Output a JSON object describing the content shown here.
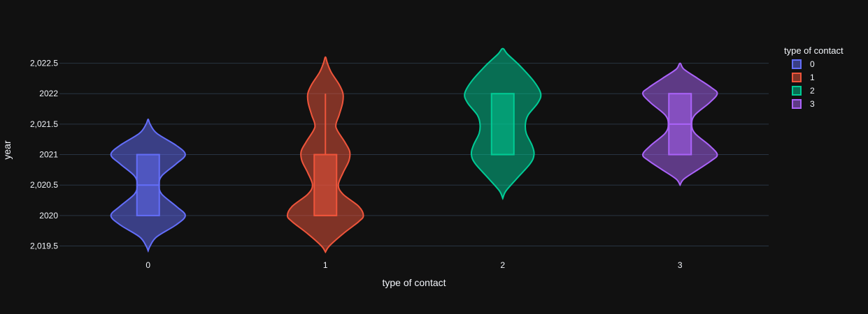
{
  "chart_data": {
    "type": "violin",
    "title": "",
    "xlabel": "type of contact",
    "ylabel": "year",
    "categories": [
      "0",
      "1",
      "2",
      "3"
    ],
    "ylim": [
      2019.3,
      2022.85
    ],
    "yticks": [
      2019.5,
      2020,
      2020.5,
      2021,
      2021.5,
      2022,
      2022.5
    ],
    "ytick_labels": [
      "2,019.5",
      "2020",
      "2,020.5",
      "2021",
      "2,021.5",
      "2022",
      "2,022.5"
    ],
    "grid": true,
    "legend": {
      "title": "type of contact",
      "placement": "top-right"
    },
    "series": [
      {
        "name": "0",
        "color": "#636efa",
        "box": {
          "q1": 2020,
          "median": 2020.5,
          "q3": 2021,
          "whisker_low": 2020,
          "whisker_high": 2021
        },
        "density": [
          [
            2019.42,
            0.0
          ],
          [
            2019.5,
            0.05
          ],
          [
            2019.65,
            0.22
          ],
          [
            2019.85,
            0.72
          ],
          [
            2020.0,
            0.95
          ],
          [
            2020.15,
            0.72
          ],
          [
            2020.35,
            0.35
          ],
          [
            2020.5,
            0.28
          ],
          [
            2020.65,
            0.35
          ],
          [
            2020.85,
            0.72
          ],
          [
            2021.0,
            0.95
          ],
          [
            2021.15,
            0.72
          ],
          [
            2021.35,
            0.22
          ],
          [
            2021.5,
            0.05
          ],
          [
            2021.58,
            0.0
          ]
        ]
      },
      {
        "name": "1",
        "color": "#ef553b",
        "box": {
          "q1": 2020,
          "median": 2020,
          "q3": 2021,
          "whisker_low": 2020,
          "whisker_high": 2022
        },
        "density": [
          [
            2019.4,
            0.0
          ],
          [
            2019.5,
            0.1
          ],
          [
            2019.7,
            0.45
          ],
          [
            2019.9,
            0.85
          ],
          [
            2020.0,
            0.97
          ],
          [
            2020.15,
            0.85
          ],
          [
            2020.35,
            0.45
          ],
          [
            2020.5,
            0.33
          ],
          [
            2020.7,
            0.45
          ],
          [
            2020.9,
            0.6
          ],
          [
            2021.05,
            0.62
          ],
          [
            2021.2,
            0.5
          ],
          [
            2021.4,
            0.3
          ],
          [
            2021.5,
            0.27
          ],
          [
            2021.65,
            0.35
          ],
          [
            2021.85,
            0.44
          ],
          [
            2022.0,
            0.45
          ],
          [
            2022.15,
            0.35
          ],
          [
            2022.35,
            0.15
          ],
          [
            2022.5,
            0.05
          ],
          [
            2022.6,
            0.0
          ]
        ]
      },
      {
        "name": "2",
        "color": "#00cc96",
        "box": {
          "q1": 2021,
          "median": 2021,
          "q3": 2022,
          "whisker_low": 2021,
          "whisker_high": 2022
        },
        "density": [
          [
            2020.28,
            0.0
          ],
          [
            2020.4,
            0.08
          ],
          [
            2020.6,
            0.35
          ],
          [
            2020.85,
            0.7
          ],
          [
            2021.0,
            0.8
          ],
          [
            2021.15,
            0.75
          ],
          [
            2021.35,
            0.6
          ],
          [
            2021.5,
            0.58
          ],
          [
            2021.65,
            0.65
          ],
          [
            2021.85,
            0.9
          ],
          [
            2022.0,
            0.97
          ],
          [
            2022.2,
            0.8
          ],
          [
            2022.45,
            0.45
          ],
          [
            2022.65,
            0.12
          ],
          [
            2022.74,
            0.0
          ]
        ]
      },
      {
        "name": "3",
        "color": "#ab63fa",
        "box": {
          "q1": 2021,
          "median": 2021.5,
          "q3": 2022,
          "whisker_low": 2021,
          "whisker_high": 2022
        },
        "density": [
          [
            2020.5,
            0.0
          ],
          [
            2020.6,
            0.1
          ],
          [
            2020.75,
            0.45
          ],
          [
            2020.9,
            0.8
          ],
          [
            2021.0,
            0.95
          ],
          [
            2021.15,
            0.75
          ],
          [
            2021.35,
            0.38
          ],
          [
            2021.5,
            0.3
          ],
          [
            2021.65,
            0.38
          ],
          [
            2021.85,
            0.75
          ],
          [
            2022.0,
            0.95
          ],
          [
            2022.1,
            0.8
          ],
          [
            2022.25,
            0.45
          ],
          [
            2022.4,
            0.1
          ],
          [
            2022.5,
            0.0
          ]
        ]
      }
    ]
  }
}
